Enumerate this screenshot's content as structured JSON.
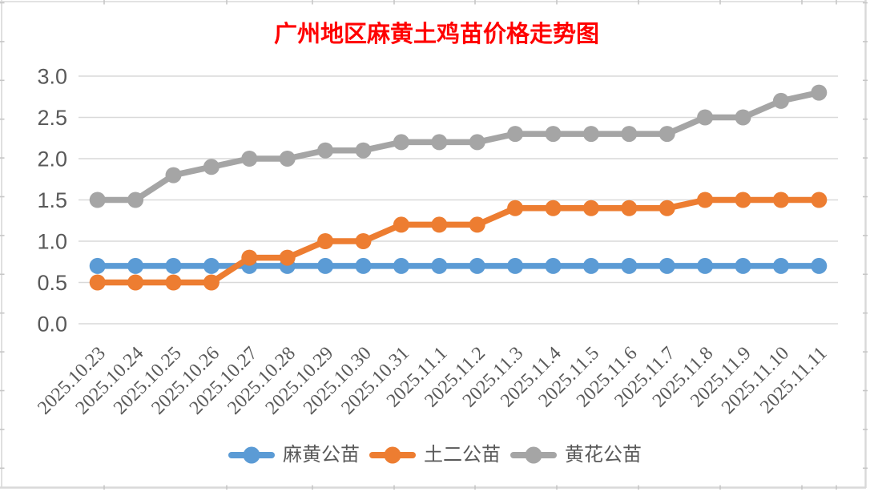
{
  "chart_data": {
    "type": "line",
    "title": "广州地区麻黄土鸡苗价格走势图",
    "title_color": "#FF0000",
    "categories": [
      "2025.10.23",
      "2025.10.24",
      "2025.10.25",
      "2025.10.26",
      "2025.10.27",
      "2025.10.28",
      "2025.10.29",
      "2025.10.30",
      "2025.10.31",
      "2025.11.1",
      "2025.11.2",
      "2025.11.3",
      "2025.11.4",
      "2025.11.5",
      "2025.11.6",
      "2025.11.7",
      "2025.11.8",
      "2025.11.9",
      "2025.11.10",
      "2025.11.11"
    ],
    "series": [
      {
        "name": "麻黄公苗",
        "color": "#5B9BD5",
        "values": [
          0.7,
          0.7,
          0.7,
          0.7,
          0.7,
          0.7,
          0.7,
          0.7,
          0.7,
          0.7,
          0.7,
          0.7,
          0.7,
          0.7,
          0.7,
          0.7,
          0.7,
          0.7,
          0.7,
          0.7
        ]
      },
      {
        "name": "土二公苗",
        "color": "#ED7D31",
        "values": [
          0.5,
          0.5,
          0.5,
          0.5,
          0.8,
          0.8,
          1.0,
          1.0,
          1.2,
          1.2,
          1.2,
          1.4,
          1.4,
          1.4,
          1.4,
          1.4,
          1.5,
          1.5,
          1.5,
          1.5
        ]
      },
      {
        "name": "黄花公苗",
        "color": "#A5A5A5",
        "values": [
          1.5,
          1.5,
          1.8,
          1.9,
          2.0,
          2.0,
          2.1,
          2.1,
          2.2,
          2.2,
          2.2,
          2.3,
          2.3,
          2.3,
          2.3,
          2.3,
          2.5,
          2.5,
          2.7,
          2.8
        ]
      }
    ],
    "ylim": [
      0,
      3
    ],
    "ytick_step": 0.5,
    "ytick_labels": [
      "0.0",
      "0.5",
      "1.0",
      "1.5",
      "2.0",
      "2.5",
      "3.0"
    ],
    "xlabel_rotation_deg": 45,
    "grid": "horizontal",
    "gridline_color": "#D9D9D9",
    "axis_label_color": "#595959",
    "legend_position": "bottom"
  }
}
